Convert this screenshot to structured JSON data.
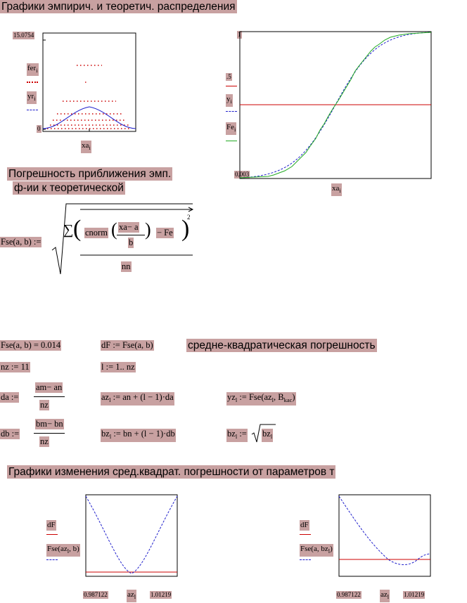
{
  "headings": {
    "graphs_title": "Графики эмпирич. и теоретич. распределения",
    "error_title_line1": "Погрешность приближения эмп.",
    "error_title_line2": "ф-ии к теоретической",
    "rms_label": "средне-квадратическая погрешность",
    "change_title": "Графики изменения сред.квадрат. погрешности от параметров т"
  },
  "plot1": {
    "ymax_label": "15.0754",
    "ymin_label": "0",
    "trace1_name": "fer",
    "trace1_sub": "i",
    "trace2_name": "yr",
    "trace2_sub": "i",
    "x_name": "xa",
    "x_sub": "i"
  },
  "plot2": {
    "ymax_label": "1",
    "ymid_label": ".5",
    "ymin_label": "0.003",
    "trace1_name": "y",
    "trace1_sub": "i",
    "trace2_name": "Fe",
    "trace2_sub": "i",
    "x_name": "xa",
    "x_sub": "i"
  },
  "formula_fse": {
    "lhs": "Fse(a, b) :=",
    "sum": "∑",
    "cnorm": "cnorm",
    "num": "xa− a",
    "den": "b",
    "minus": "− Fe",
    "power": "2",
    "denominator": "nn"
  },
  "row1": {
    "result": "Fse(a, b) = 0.014",
    "df": "dF := Fse(a, b)"
  },
  "row2": {
    "nz": "nz := 11",
    "range_lhs": "l := 1.. nz"
  },
  "row3": {
    "da_lhs": "da :=",
    "da_num": "am− an",
    "da_den": "nz",
    "az_lhs": "az",
    "az_sub": "l",
    "az_rhs": ":= an + (l − 1)·da",
    "yz_lhs": "yz",
    "yz_sub": "l",
    "yz_rhs_a": ":= Fse(az",
    "yz_rhs_sub": "l",
    "yz_rhs_b": ", B",
    "yz_rhs_sub2": "kac",
    "yz_rhs_c": ")"
  },
  "row4": {
    "db_lhs": "db :=",
    "db_num": "bm− bn",
    "db_den": "nz",
    "bz_lhs": "bz",
    "bz_sub": "l",
    "bz_rhs": ":= bn + (l − 1)·db",
    "bz2_lhs": "bz",
    "bz2_sub": "l",
    "bz2_rhs": ":= ",
    "bz2_root": "bz",
    "bz2_root_sub": "l"
  },
  "plot3": {
    "trace1_name": "dF",
    "trace2_name": "Fse(az",
    "trace2_sub": "l",
    "trace2_end": ", b)",
    "x_min": "0.987122",
    "x_max": "1.01219",
    "x_name": "az",
    "x_sub": "l"
  },
  "plot4": {
    "trace1_name": "dF",
    "trace2_name": "Fse(a, bz",
    "trace2_sub": "l",
    "trace2_end": ")",
    "x_min": "0.987122",
    "x_max": "1.01219",
    "x_name": "az",
    "x_sub": "l"
  },
  "colors": {
    "highlight": "#c8a1a1",
    "red": "#cc0000",
    "blue": "#2020cc",
    "green": "#22aa22"
  }
}
